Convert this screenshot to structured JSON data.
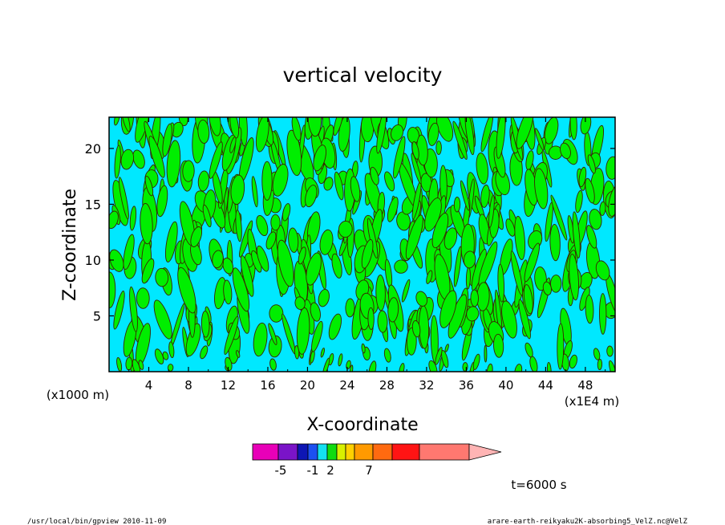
{
  "chart_data": {
    "type": "heatmap",
    "title": "vertical velocity",
    "xlabel": "X-coordinate",
    "ylabel": "Z-coordinate",
    "x_unit_left": "(x1000 m)",
    "x_unit_right": "(x1E4 m)",
    "x_ticks": [
      "4",
      "8",
      "12",
      "16",
      "20",
      "24",
      "28",
      "32",
      "36",
      "40",
      "44",
      "48"
    ],
    "y_ticks": [
      "5",
      "10",
      "15",
      "20"
    ],
    "xlim": [
      0,
      51
    ],
    "ylim": [
      0,
      22.8
    ],
    "colorbar": {
      "colors": [
        "#e800b8",
        "#7a14c8",
        "#0e16b4",
        "#1c50f0",
        "#14e0f0",
        "#10dc10",
        "#d8f000",
        "#ffd000",
        "#ff9a00",
        "#ff6a10",
        "#ff1414",
        "#ff7870",
        "#ffb4b4"
      ],
      "tick_labels": [
        "-5",
        "-1",
        "2",
        "7"
      ]
    },
    "field_colors": {
      "negative": "#00e8ff",
      "positive": "#00ee00",
      "contour": "#3a2200"
    },
    "time_label": "t=6000 s"
  },
  "footer": {
    "left": "/usr/local/bin/gpview  2010-11-09",
    "right": "arare-earth-reikyaku2K-absorbing5_VelZ.nc@VelZ"
  }
}
